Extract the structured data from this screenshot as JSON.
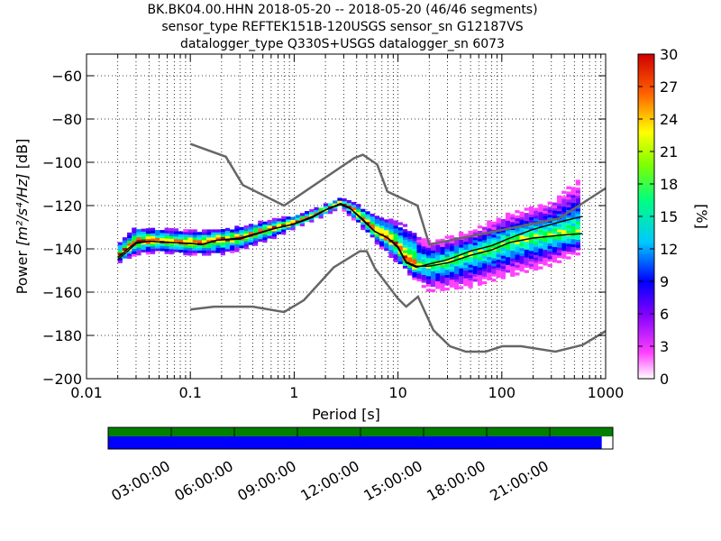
{
  "title_lines": [
    "BK.BK04.00.HHN   2018-05-20 -- 2018-05-20  (46/46 segments)",
    "sensor_type REFTEK151B-120USGS sensor_sn G12187VS",
    "datalogger_type Q330S+USGS datalogger_sn 6073"
  ],
  "chart_data": {
    "type": "heatmap",
    "xlabel": "Period [s]",
    "ylabel_prefix": "Power ",
    "ylabel_unit": "[m²/s⁴/Hz]",
    "ylabel_suffix": " [dB]",
    "x_scale": "log",
    "xlim": [
      0.01,
      1000
    ],
    "ylim": [
      -200,
      -50
    ],
    "x_ticks": [
      0.01,
      0.1,
      1,
      10,
      100,
      1000
    ],
    "x_tick_labels": [
      "0.01",
      "0.1",
      "1",
      "10",
      "100",
      "1000"
    ],
    "y_ticks": [
      -200,
      -180,
      -160,
      -140,
      -120,
      -100,
      -80,
      -60
    ],
    "y_tick_labels": [
      "−200",
      "−180",
      "−160",
      "−140",
      "−120",
      "−100",
      "−80",
      "−60"
    ],
    "colorbar": {
      "label": "[%]",
      "range": [
        0,
        30
      ],
      "ticks": [
        0,
        3,
        6,
        9,
        12,
        15,
        18,
        21,
        24,
        27,
        30
      ],
      "tick_labels": [
        "0",
        "3",
        "6",
        "9",
        "12",
        "15",
        "18",
        "21",
        "24",
        "27",
        "30"
      ]
    },
    "noise_model_high": [
      [
        0.1,
        -91.5
      ],
      [
        0.22,
        -97.4
      ],
      [
        0.32,
        -110.5
      ],
      [
        0.8,
        -120
      ],
      [
        3.8,
        -98
      ],
      [
        4.6,
        -96.5
      ],
      [
        6.3,
        -101
      ],
      [
        7.9,
        -113.5
      ],
      [
        15.4,
        -120
      ],
      [
        20,
        -138
      ],
      [
        354,
        -126
      ],
      [
        1000,
        -112
      ]
    ],
    "noise_model_low": [
      [
        0.1,
        -168
      ],
      [
        0.17,
        -166.7
      ],
      [
        0.4,
        -166.7
      ],
      [
        0.8,
        -169.2
      ],
      [
        1.24,
        -163.7
      ],
      [
        2.4,
        -148.6
      ],
      [
        4.3,
        -141.1
      ],
      [
        5.0,
        -141.1
      ],
      [
        6.0,
        -149
      ],
      [
        10,
        -163
      ],
      [
        12,
        -166.7
      ],
      [
        15.6,
        -162.1
      ],
      [
        21.9,
        -177.5
      ],
      [
        31.6,
        -185
      ],
      [
        45,
        -187.5
      ],
      [
        70,
        -187.5
      ],
      [
        101,
        -185
      ],
      [
        154,
        -185
      ],
      [
        328,
        -187.5
      ],
      [
        600,
        -184.4
      ],
      [
        1000,
        -178
      ]
    ],
    "mode_curve": [
      [
        0.02,
        -144
      ],
      [
        0.025,
        -140
      ],
      [
        0.03,
        -137
      ],
      [
        0.04,
        -136.5
      ],
      [
        0.06,
        -137
      ],
      [
        0.1,
        -137.5
      ],
      [
        0.13,
        -138
      ],
      [
        0.18,
        -136
      ],
      [
        0.3,
        -135.5
      ],
      [
        0.6,
        -131
      ],
      [
        1,
        -128.5
      ],
      [
        1.5,
        -125.5
      ],
      [
        2,
        -122
      ],
      [
        2.8,
        -119.5
      ],
      [
        3.5,
        -121.5
      ],
      [
        4.5,
        -126
      ],
      [
        6,
        -132
      ],
      [
        8,
        -135
      ],
      [
        10,
        -139
      ],
      [
        12,
        -146
      ],
      [
        15,
        -148
      ],
      [
        20,
        -148
      ],
      [
        30,
        -146.5
      ],
      [
        50,
        -143
      ],
      [
        80,
        -140.5
      ],
      [
        120,
        -137
      ],
      [
        200,
        -135
      ],
      [
        400,
        -133.5
      ],
      [
        600,
        -133
      ]
    ],
    "mean_curve": [
      [
        0.02,
        -145
      ],
      [
        0.025,
        -141
      ],
      [
        0.03,
        -137.5
      ],
      [
        0.04,
        -136.5
      ],
      [
        0.06,
        -137
      ],
      [
        0.1,
        -137.5
      ],
      [
        0.13,
        -138
      ],
      [
        0.18,
        -136
      ],
      [
        0.3,
        -135
      ],
      [
        0.6,
        -131
      ],
      [
        1,
        -128.5
      ],
      [
        1.5,
        -125
      ],
      [
        2,
        -122
      ],
      [
        2.8,
        -119
      ],
      [
        3.5,
        -121.5
      ],
      [
        4.5,
        -126.5
      ],
      [
        6,
        -132
      ],
      [
        8,
        -135
      ],
      [
        10,
        -139.5
      ],
      [
        12,
        -146.5
      ],
      [
        15,
        -148.5
      ],
      [
        20,
        -147
      ],
      [
        30,
        -145
      ],
      [
        50,
        -141
      ],
      [
        80,
        -138.5
      ],
      [
        120,
        -135
      ],
      [
        200,
        -131
      ],
      [
        400,
        -127
      ],
      [
        600,
        -125
      ]
    ],
    "probability_band": {
      "upper": [
        [
          0.02,
          -138
        ],
        [
          0.03,
          -130
        ],
        [
          0.05,
          -131
        ],
        [
          0.1,
          -132
        ],
        [
          0.2,
          -131
        ],
        [
          0.3,
          -130
        ],
        [
          0.6,
          -127
        ],
        [
          1,
          -125
        ],
        [
          2,
          -120
        ],
        [
          2.8,
          -116.5
        ],
        [
          4,
          -119
        ],
        [
          6,
          -124
        ],
        [
          10,
          -128
        ],
        [
          15,
          -132
        ],
        [
          20,
          -137
        ],
        [
          50,
          -132
        ],
        [
          100,
          -125
        ],
        [
          300,
          -118
        ],
        [
          600,
          -107
        ]
      ],
      "lower": [
        [
          0.02,
          -147
        ],
        [
          0.03,
          -143
        ],
        [
          0.05,
          -142
        ],
        [
          0.1,
          -143
        ],
        [
          0.2,
          -143
        ],
        [
          0.3,
          -141
        ],
        [
          0.6,
          -136
        ],
        [
          1,
          -131
        ],
        [
          2,
          -125
        ],
        [
          2.8,
          -121
        ],
        [
          4,
          -128
        ],
        [
          6,
          -137
        ],
        [
          10,
          -147
        ],
        [
          15,
          -155
        ],
        [
          20,
          -160
        ],
        [
          50,
          -158
        ],
        [
          100,
          -154
        ],
        [
          300,
          -148
        ],
        [
          600,
          -142
        ]
      ]
    },
    "timeline": {
      "tick_labels": [
        "03:00:00",
        "06:00:00",
        "09:00:00",
        "12:00:00",
        "15:00:00",
        "18:00:00",
        "21:00:00"
      ],
      "data_available_fraction": 1.0,
      "segments_fraction": 0.978,
      "available_color": "#007f00",
      "segments_color": "#0000ff"
    }
  }
}
